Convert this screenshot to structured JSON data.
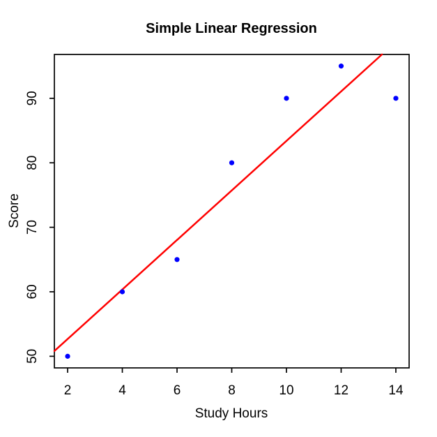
{
  "chart_data": {
    "type": "scatter",
    "title": "Simple Linear Regression",
    "xlabel": "Study Hours",
    "ylabel": "Score",
    "x": [
      2,
      4,
      6,
      8,
      10,
      12,
      14
    ],
    "y": [
      50,
      60,
      65,
      80,
      90,
      95,
      90
    ],
    "x_ticks": [
      "2",
      "4",
      "6",
      "8",
      "10",
      "12",
      "14"
    ],
    "x_tick_values": [
      2,
      4,
      6,
      8,
      10,
      12,
      14
    ],
    "y_ticks": [
      "50",
      "60",
      "70",
      "80",
      "90"
    ],
    "y_tick_values": [
      50,
      60,
      70,
      80,
      90
    ],
    "xlim": [
      1.515,
      14.485
    ],
    "ylim": [
      48.2,
      96.8
    ],
    "regression_line": {
      "slope": 3.8393,
      "intercept": 45.0
    },
    "point_color": "#0000ff",
    "line_color": "#ff0000",
    "axis_color": "#000000",
    "background_color": "#ffffff",
    "grid": false,
    "legend": "none"
  }
}
